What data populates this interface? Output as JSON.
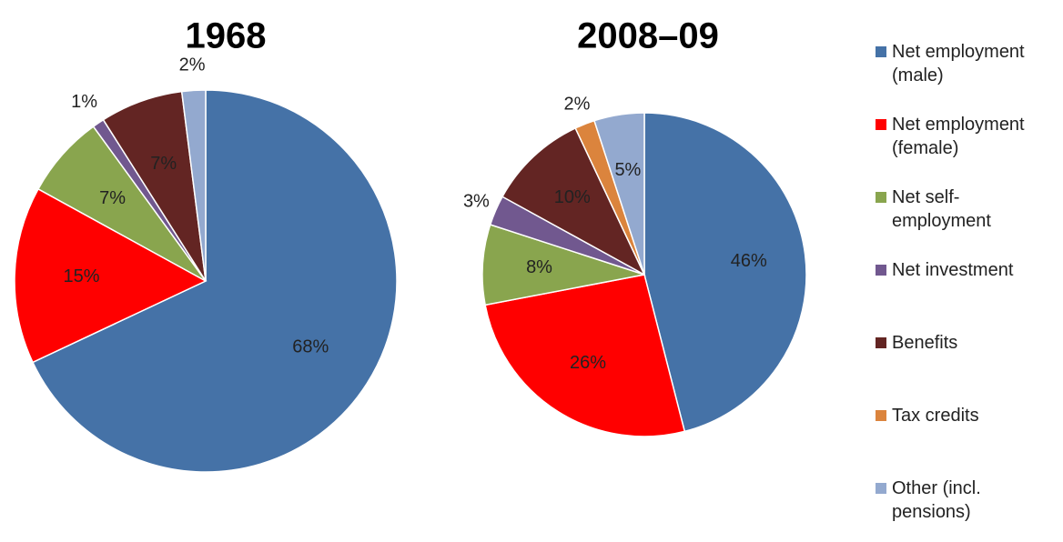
{
  "chart_data": [
    {
      "type": "pie",
      "title": "1968",
      "categories": [
        "Net employment (male)",
        "Net employment (female)",
        "Net self-employment",
        "Net investment",
        "Benefits",
        "Tax credits",
        "Other (incl. pensions)"
      ],
      "colors": [
        "#4572a7",
        "#ff0000",
        "#89a54e",
        "#71588f",
        "#632523",
        "#db843d",
        "#93a9cf"
      ],
      "values": [
        68,
        15,
        7,
        1,
        7,
        null,
        2
      ],
      "value_labels": [
        "68%",
        "15%",
        "7%",
        "1%",
        "7%",
        null,
        "2%"
      ]
    },
    {
      "type": "pie",
      "title": "2008–09",
      "values": [
        46,
        26,
        8,
        3,
        10,
        2,
        5
      ],
      "value_labels": [
        "46%",
        "26%",
        "8%",
        "3%",
        "10%",
        "2%",
        "5%"
      ]
    }
  ]
}
